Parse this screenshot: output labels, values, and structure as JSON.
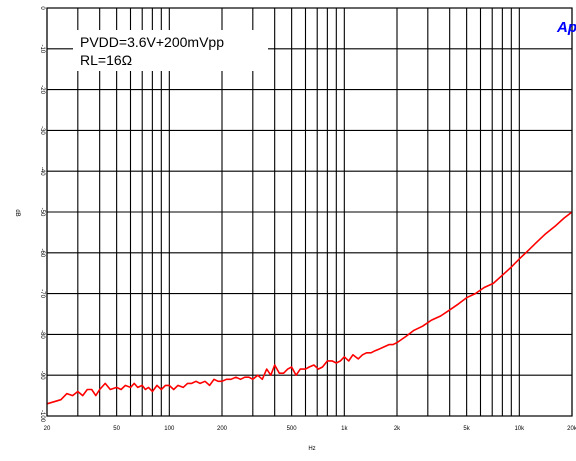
{
  "chart_data": {
    "type": "line",
    "title": "",
    "xlabel": "Hz",
    "ylabel": "dB",
    "xscale": "log",
    "xlim": [
      20,
      20000
    ],
    "ylim": [
      -100,
      0
    ],
    "grid": true,
    "legend": "none",
    "x_tick_values": [
      20,
      50,
      100,
      200,
      500,
      1000,
      2000,
      5000,
      10000,
      20000
    ],
    "x_tick_labels": [
      "20",
      "50",
      "100",
      "200",
      "500",
      "1k",
      "2k",
      "5k",
      "10k",
      "20k"
    ],
    "y_tick_values": [
      0,
      -10,
      -20,
      -30,
      -40,
      -50,
      -60,
      -70,
      -80,
      -90,
      -100
    ],
    "y_tick_labels": [
      "0",
      "-10",
      "-20",
      "-30",
      "-40",
      "-50",
      "-60",
      "-70",
      "-80",
      "-90",
      "-100"
    ],
    "annotation_lines": [
      "PVDD=3.6V+200mVpp",
      "RL=16Ω"
    ],
    "logo_text": "Ap",
    "colors": {
      "series": "#ff0000",
      "grid": "#000000",
      "logo": "#0000ff"
    },
    "series": [
      {
        "x": [
          20,
          22,
          24,
          26,
          28,
          30,
          32,
          34,
          36,
          38,
          40,
          43,
          46,
          50,
          53,
          56,
          60,
          63,
          66,
          70,
          73,
          76,
          80,
          85,
          90,
          95,
          100,
          106,
          112,
          120,
          127,
          134,
          142,
          150,
          160,
          170,
          180,
          190,
          200,
          212,
          225,
          240,
          255,
          270,
          285,
          300,
          320,
          340,
          360,
          380,
          400,
          425,
          450,
          475,
          500,
          530,
          560,
          600,
          630,
          670,
          710,
          750,
          800,
          850,
          900,
          950,
          1000,
          1060,
          1120,
          1200,
          1270,
          1340,
          1420,
          1500,
          1600,
          1700,
          1800,
          1900,
          2000,
          2250,
          2500,
          2800,
          3150,
          3550,
          4000,
          4500,
          5000,
          5600,
          6300,
          7100,
          8000,
          9000,
          10000,
          11200,
          12500,
          14000,
          16000,
          18000,
          20000
        ],
        "y": [
          -97,
          -96.5,
          -96,
          -94.5,
          -95,
          -94,
          -95,
          -93.5,
          -93.5,
          -95,
          -93.5,
          -92,
          -93.5,
          -93,
          -93.5,
          -92.5,
          -93,
          -92,
          -93,
          -92.5,
          -93.5,
          -93,
          -94,
          -92.5,
          -93.5,
          -92.5,
          -92.5,
          -93.5,
          -92.5,
          -93,
          -92,
          -92,
          -91.5,
          -92,
          -91.5,
          -92.5,
          -91,
          -91.5,
          -91.5,
          -91,
          -91,
          -90.5,
          -91,
          -90.5,
          -90.5,
          -91,
          -90,
          -91,
          -88.5,
          -90,
          -87.5,
          -89.5,
          -89.5,
          -88.5,
          -88,
          -90,
          -88.5,
          -88.5,
          -88,
          -87.5,
          -88.5,
          -88,
          -86.5,
          -86.5,
          -87,
          -86.5,
          -85.5,
          -86.5,
          -85,
          -86,
          -85,
          -84.5,
          -84.5,
          -84,
          -83.5,
          -83,
          -82.5,
          -82.5,
          -82,
          -80.5,
          -79,
          -78,
          -76.5,
          -75.5,
          -74,
          -72.5,
          -71,
          -70,
          -68.5,
          -67.5,
          -65.5,
          -63.5,
          -61.5,
          -59.5,
          -57.5,
          -55.5,
          -53.5,
          -51.5,
          -50
        ]
      }
    ]
  }
}
